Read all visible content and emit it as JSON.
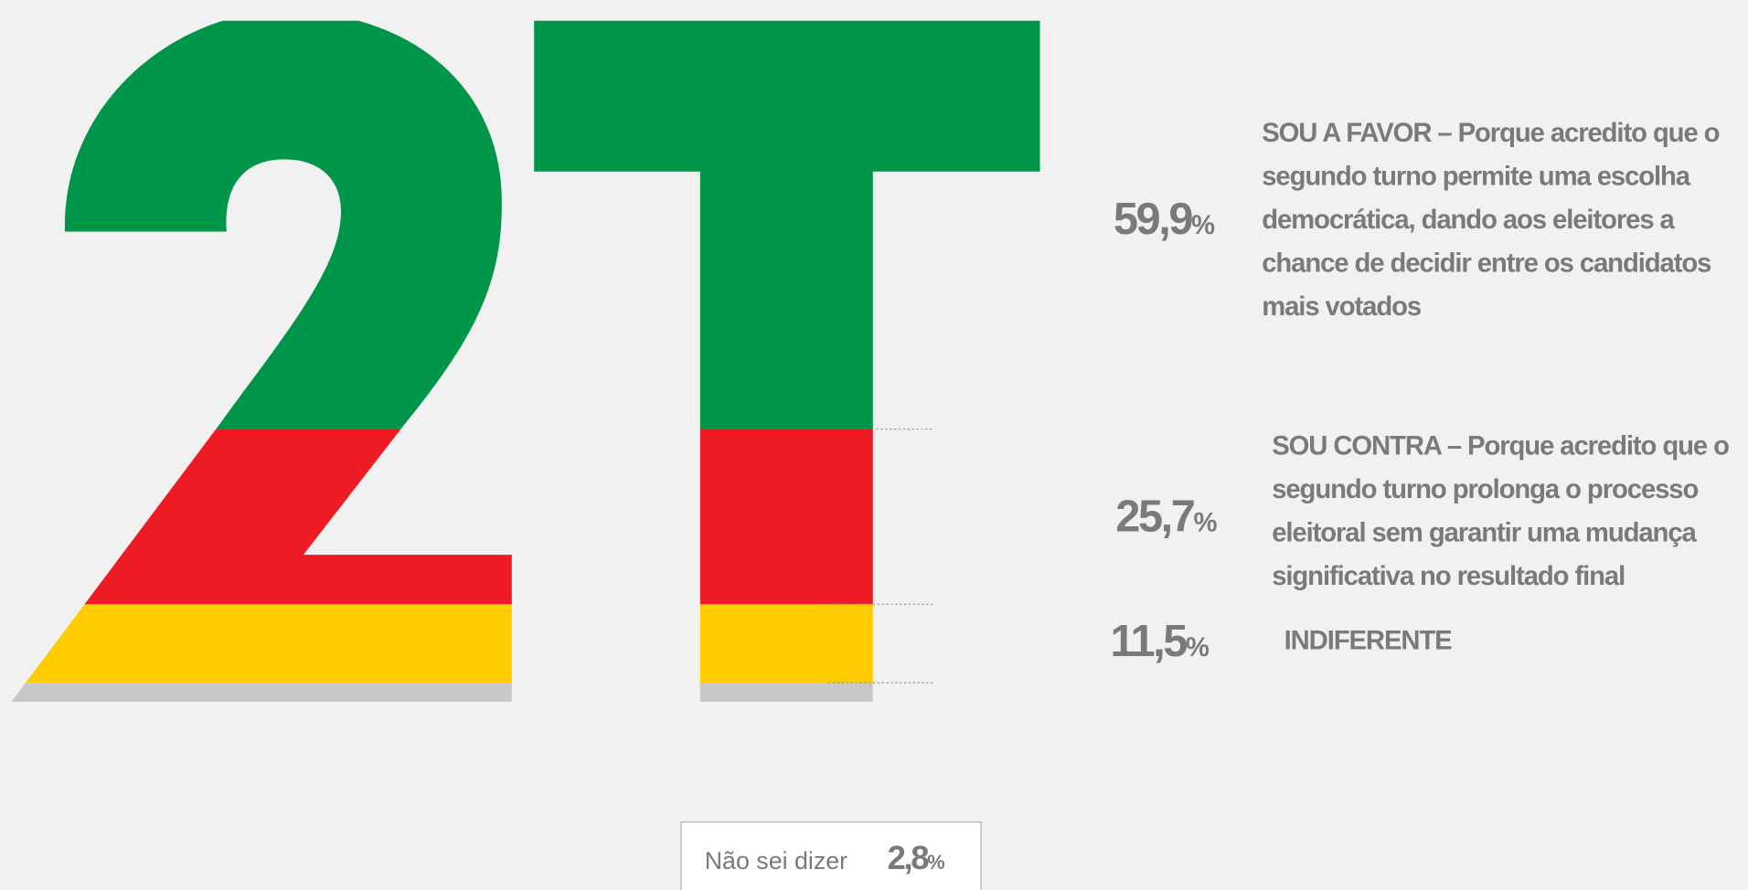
{
  "chart_data": {
    "type": "stacked-glyph",
    "series": [
      {
        "name": "SOU A FAVOR – Porque acredito que o segundo turno permite uma escolha democrática, dando aos eleitores a chance de decidir entre os candidatos mais votados",
        "color": "#00964a",
        "values": [
          59.9
        ],
        "value_labels": [
          "59,9%"
        ]
      },
      {
        "name": "SOU CONTRA – Porque acredito que o segundo turno prolonga o processo eleitoral sem garantir uma mudança significativa no resultado final",
        "color": "#ed1c24",
        "values": [
          25.7
        ],
        "value_labels": [
          "25,7%"
        ]
      },
      {
        "name": "INDIFERENTE",
        "color": "#ffcc00",
        "values": [
          11.5
        ],
        "value_labels": [
          "11,5%"
        ]
      },
      {
        "name": "Não sei dizer",
        "color": "#c8c8c8",
        "values": [
          2.8
        ],
        "value_labels": [
          "2,8%"
        ]
      }
    ]
  }
}
